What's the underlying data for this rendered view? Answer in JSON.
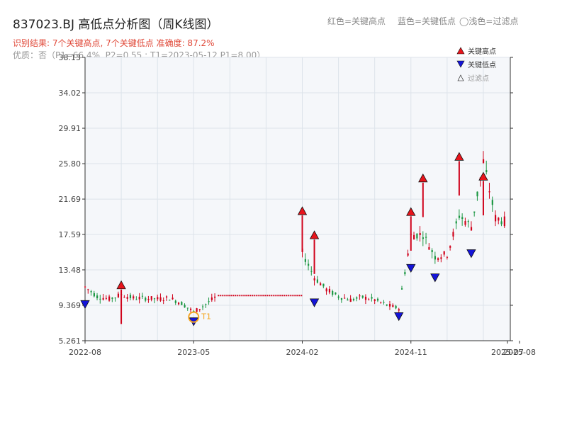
{
  "header": {
    "title": "837023.BJ 高低点分析图（周K线图）",
    "legend_red": "红色=关键高点",
    "legend_blue": "蓝色=关键低点",
    "legend_light": "◯浅色=过滤点",
    "result": "识别结果: 7个关键高点, 7个关键低点  准确度: 87.2%",
    "quality": "优质：否（P1=66.4%, P2=0.55 ; T1=2023-05-12 P1=8.00）"
  },
  "colors": {
    "up": "#d0021b",
    "down": "#1a9641",
    "high_marker": "#e8141b",
    "low_marker": "#1414d8",
    "t1_ring": "#f5a623",
    "grid": "#dde3ea",
    "plot_bg": "#f5f7fa"
  },
  "chart_data": {
    "type": "candlestick",
    "title": "837023.BJ 高低点分析图（周K线图）",
    "x_ticks": [
      "2022-08",
      "2023-05",
      "2024-02",
      "2024-11",
      "2025-07",
      "2025-08"
    ],
    "y_ticks": [
      "5.261",
      "9.369",
      "13.48",
      "17.59",
      "21.69",
      "25.80",
      "29.91",
      "34.02",
      "38.13"
    ],
    "ylim": [
      5.261,
      38.13
    ],
    "grid": true,
    "legend": {
      "position": "top-right",
      "entries": [
        "关键高点",
        "关键低点",
        "过滤点"
      ]
    },
    "key_highs": [
      {
        "date": "2022-11",
        "price": 11.2
      },
      {
        "date": "2024-02",
        "price": 19.8
      },
      {
        "date": "2024-03",
        "price": 17.0
      },
      {
        "date": "2024-11",
        "price": 19.7
      },
      {
        "date": "2024-12",
        "price": 23.6
      },
      {
        "date": "2025-03",
        "price": 26.1
      },
      {
        "date": "2025-05",
        "price": 23.8
      }
    ],
    "key_lows": [
      {
        "date": "2022-08",
        "price": 10.0
      },
      {
        "date": "2024-03",
        "price": 10.2
      },
      {
        "date": "2024-10",
        "price": 8.6
      },
      {
        "date": "2024-11",
        "price": 14.2
      },
      {
        "date": "2025-01",
        "price": 13.1
      },
      {
        "date": "2025-04",
        "price": 15.9
      },
      {
        "date": "2023-05",
        "price": 8.0
      }
    ],
    "t1_marker": {
      "label": "T1",
      "date": "2023-05-12",
      "price": 8.0
    },
    "flat_segment": {
      "from": "2023-07",
      "to": "2024-02",
      "price": 10.5
    },
    "price_path": [
      [
        "2022-08",
        11.5
      ],
      [
        "2022-09",
        10.4
      ],
      [
        "2022-10",
        10.1
      ],
      [
        "2022-11",
        10.6
      ],
      [
        "2022-12",
        10.2
      ],
      [
        "2023-01",
        10.2
      ],
      [
        "2023-02",
        10.1
      ],
      [
        "2023-03",
        10.2
      ],
      [
        "2023-04",
        9.6
      ],
      [
        "2023-05",
        8.6
      ],
      [
        "2023-06",
        9.5
      ],
      [
        "2023-07",
        10.5
      ],
      [
        "2024-02",
        15.5
      ],
      [
        "2024-03",
        12.6
      ],
      [
        "2024-04",
        11.2
      ],
      [
        "2024-05",
        10.4
      ],
      [
        "2024-06",
        10.0
      ],
      [
        "2024-07",
        10.3
      ],
      [
        "2024-08",
        10.0
      ],
      [
        "2024-09",
        9.4
      ],
      [
        "2024-10",
        9.0
      ],
      [
        "2024-11",
        17.5
      ],
      [
        "2024-12",
        17.6
      ],
      [
        "2025-01",
        15.0
      ],
      [
        "2025-02",
        15.3
      ],
      [
        "2025-03",
        19.8
      ],
      [
        "2025-04",
        18.5
      ],
      [
        "2025-05",
        26.0
      ],
      [
        "2025-06",
        19.5
      ],
      [
        "2025-07",
        19.0
      ]
    ]
  }
}
